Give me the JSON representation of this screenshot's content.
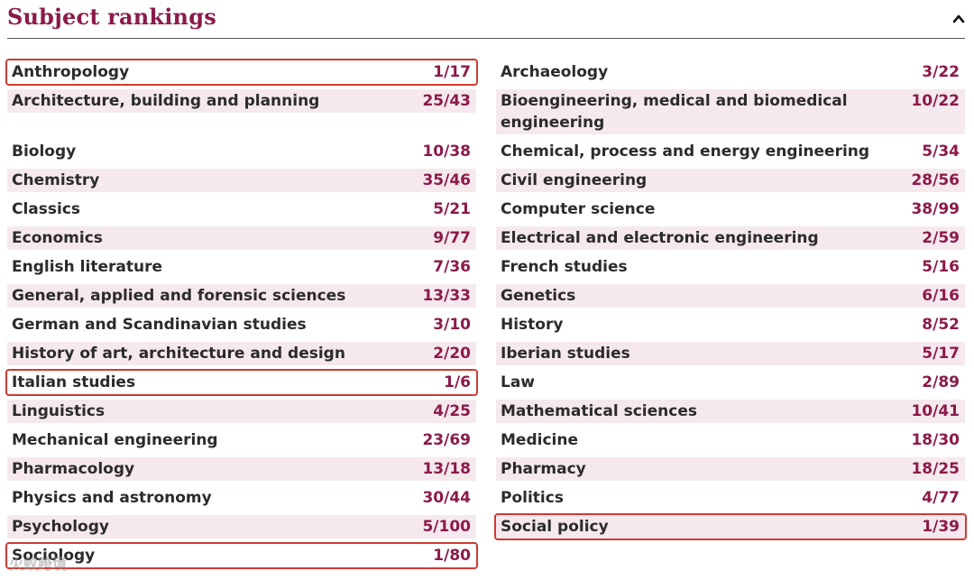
{
  "header": {
    "title": "Subject rankings"
  },
  "left_rows": [
    {
      "name": "Anthropology",
      "rank": "1/17"
    },
    {
      "name": "Architecture, building and planning",
      "rank": "25/43"
    },
    {
      "name": "Biology",
      "rank": "10/38"
    },
    {
      "name": "Chemistry",
      "rank": "35/46"
    },
    {
      "name": "Classics",
      "rank": "5/21"
    },
    {
      "name": "Economics",
      "rank": "9/77"
    },
    {
      "name": "English literature",
      "rank": "7/36"
    },
    {
      "name": "General, applied and forensic sciences",
      "rank": "13/33"
    },
    {
      "name": "German and Scandinavian studies",
      "rank": "3/10"
    },
    {
      "name": "History of art, architecture and design",
      "rank": "2/20"
    },
    {
      "name": "Italian studies",
      "rank": "1/6"
    },
    {
      "name": "Linguistics",
      "rank": "4/25"
    },
    {
      "name": "Mechanical engineering",
      "rank": "23/69"
    },
    {
      "name": "Pharmacology",
      "rank": "13/18"
    },
    {
      "name": "Physics and astronomy",
      "rank": "30/44"
    },
    {
      "name": "Psychology",
      "rank": "5/100"
    },
    {
      "name": "Sociology",
      "rank": "1/80"
    }
  ],
  "right_rows": [
    {
      "name": "Archaeology",
      "rank": "3/22"
    },
    {
      "name": "Bioengineering, medical and biomedical engineering",
      "rank": "10/22"
    },
    {
      "name": "Chemical, process and energy engineering",
      "rank": "5/34"
    },
    {
      "name": "Civil engineering",
      "rank": "28/56"
    },
    {
      "name": "Computer science",
      "rank": "38/99"
    },
    {
      "name": "Electrical and electronic engineering",
      "rank": "2/59"
    },
    {
      "name": "French studies",
      "rank": "5/16"
    },
    {
      "name": "Genetics",
      "rank": "6/16"
    },
    {
      "name": "History",
      "rank": "8/52"
    },
    {
      "name": "Iberian studies",
      "rank": "5/17"
    },
    {
      "name": "Law",
      "rank": "2/89"
    },
    {
      "name": "Mathematical sciences",
      "rank": "10/41"
    },
    {
      "name": "Medicine",
      "rank": "18/30"
    },
    {
      "name": "Pharmacy",
      "rank": "18/25"
    },
    {
      "name": "Politics",
      "rank": "4/77"
    },
    {
      "name": "Social policy",
      "rank": "1/39"
    }
  ],
  "watermark": "火蚁跨境"
}
